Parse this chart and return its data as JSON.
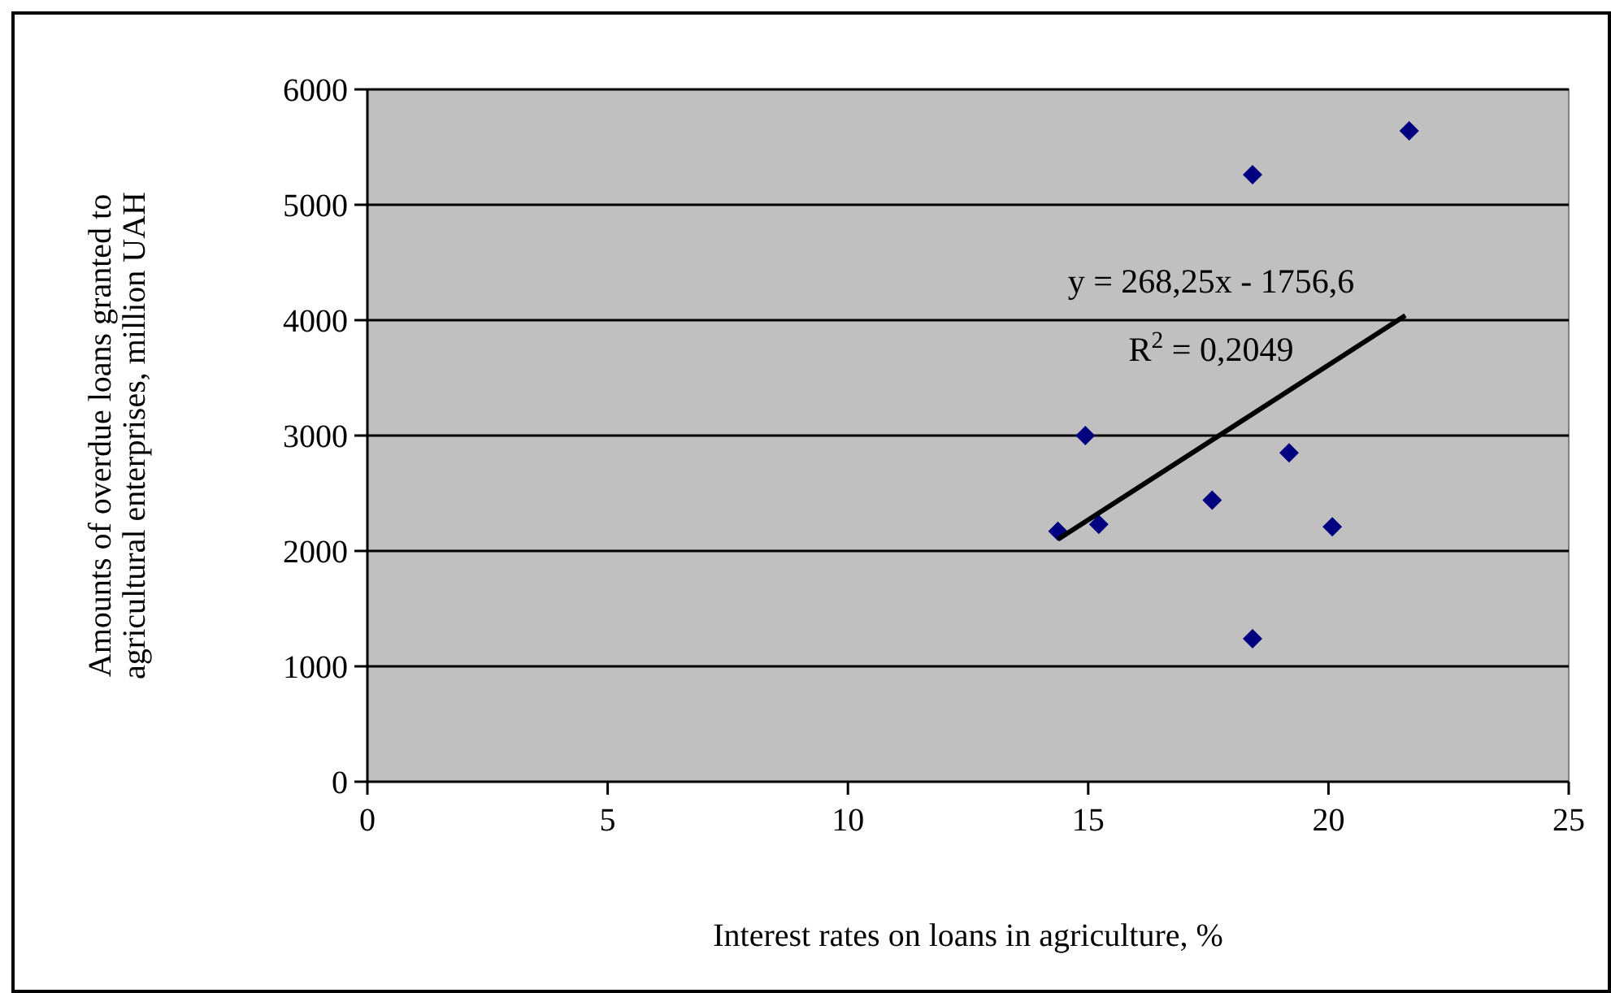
{
  "chart_data": {
    "type": "scatter",
    "xlabel": "Interest rates on loans in agriculture, %",
    "ylabel": "Amounts of overdue loans granted to agricultural enterprises, million UAH",
    "xlim": [
      0,
      25
    ],
    "xticks": [
      0,
      5,
      10,
      15,
      20,
      25
    ],
    "ylim": [
      0,
      6000
    ],
    "yticks": [
      0,
      1000,
      2000,
      3000,
      4000,
      5000,
      6000
    ],
    "grid": "y",
    "marker": "diamond",
    "series": [
      {
        "color": "#000080",
        "x": [
          14.37,
          14.94,
          15.22,
          17.58,
          18.42,
          18.42,
          19.18,
          20.08,
          21.68
        ],
        "values": [
          2170,
          3000,
          2230,
          2440,
          5260,
          1240,
          2850,
          2210,
          5640
        ]
      },
      {
        "type": "line",
        "color": "#000000",
        "marker": "none",
        "line_style": "solid",
        "x": [
          14.37,
          21.6
        ],
        "values": [
          2100,
          4040
        ]
      }
    ],
    "annotations": [
      "y = 268,25x - 1756,6",
      "R$^{2}$ = 0,2049"
    ]
  }
}
